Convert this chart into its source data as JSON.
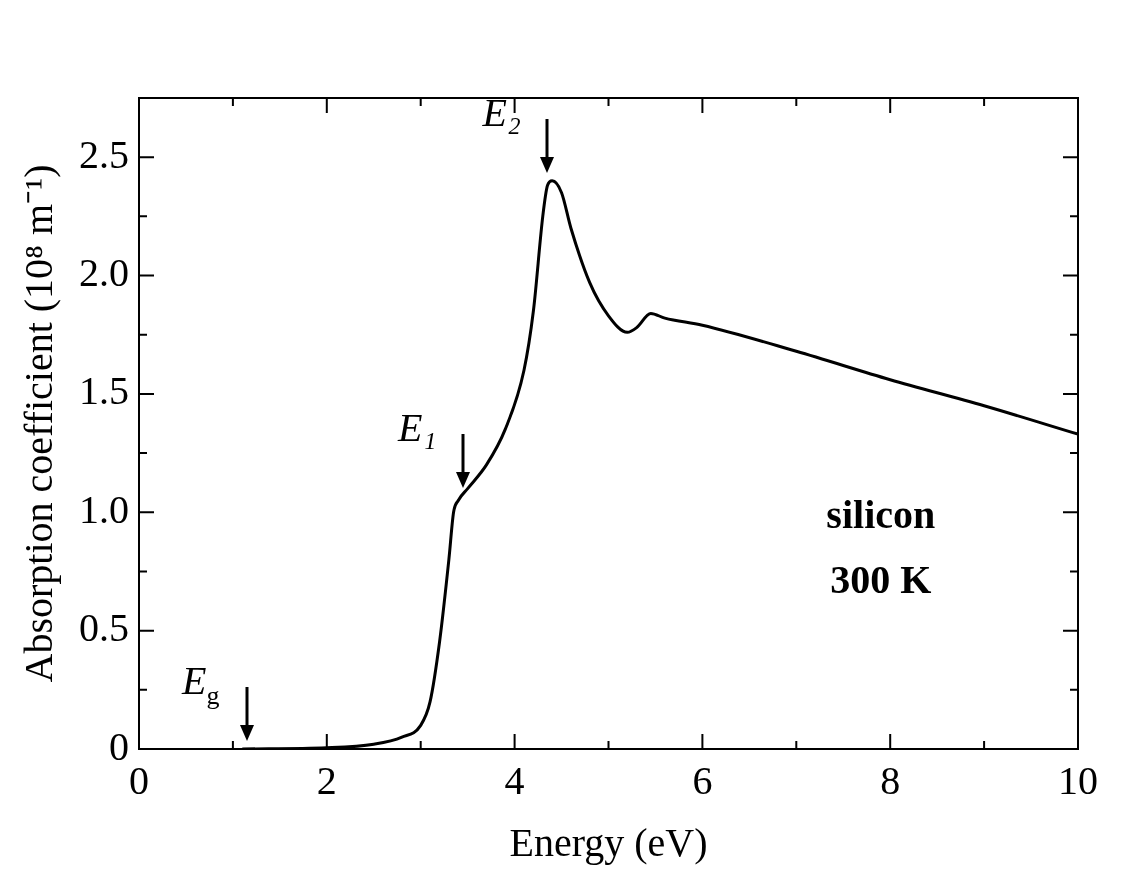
{
  "chart_data": {
    "type": "line",
    "xlabel": "Energy (eV)",
    "ylabel": "Absorption coefficient (10⁸ m⁻¹)",
    "x": [
      1.1,
      2.0,
      2.5,
      2.8,
      3.0,
      3.1,
      3.2,
      3.3,
      3.35,
      3.4,
      3.5,
      3.7,
      3.9,
      4.1,
      4.2,
      4.3,
      4.35,
      4.4,
      4.5,
      4.6,
      4.8,
      5.0,
      5.2,
      5.3,
      5.45,
      5.6,
      6,
      7,
      8,
      9,
      10
    ],
    "series": [
      {
        "color": "#000000",
        "values": [
          0,
          0.005,
          0.02,
          0.05,
          0.1,
          0.2,
          0.45,
          0.8,
          1.0,
          1.05,
          1.1,
          1.2,
          1.35,
          1.6,
          1.85,
          2.25,
          2.38,
          2.4,
          2.35,
          2.2,
          1.97,
          1.83,
          1.76,
          1.78,
          1.84,
          1.82,
          1.79,
          1.68,
          1.56,
          1.45,
          1.33
        ]
      }
    ],
    "xlim": [
      0,
      10
    ],
    "ylim": [
      0,
      2.75
    ],
    "xticks": [
      0,
      {
        "value": 1,
        "label": null
      },
      2,
      {
        "value": 3,
        "label": null
      },
      4,
      {
        "value": 5,
        "label": null
      },
      6,
      {
        "value": 7,
        "label": null
      },
      8,
      {
        "value": 9,
        "label": null
      },
      10
    ],
    "yticks": [
      0,
      {
        "value": 0.25,
        "label": null
      },
      0.5,
      {
        "value": 0.75,
        "label": null
      },
      {
        "value": 1,
        "label": "1.0"
      },
      {
        "value": 1.25,
        "label": null
      },
      1.5,
      {
        "value": 1.75,
        "label": null
      },
      {
        "value": 2,
        "label": "2.0"
      },
      {
        "value": 2.25,
        "label": null
      },
      2.5
    ],
    "annotations": [
      {
        "text": "E$_{g}$",
        "x": 1.15,
        "y": 0
      },
      {
        "text": "E₁",
        "x": 3.45,
        "y": 1.07
      },
      {
        "text": "E₂",
        "x": 4.35,
        "y": 2.4
      },
      "silicon",
      "300 K"
    ],
    "grid": false,
    "legend": false,
    "marker": "none",
    "line_style": "solid"
  }
}
